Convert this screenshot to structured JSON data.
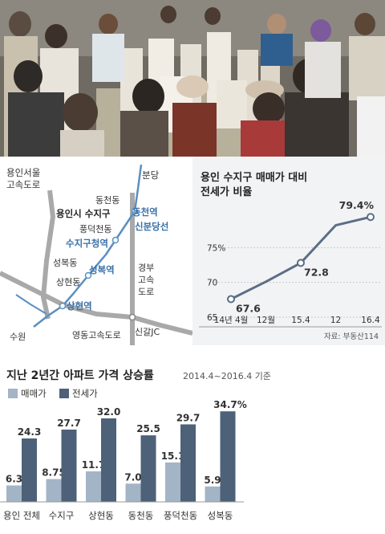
{
  "map": {
    "labels": {
      "expressway_yongin_seoul": "용인서울\n고속도로",
      "bundang": "분당",
      "dongcheon_dong": "동천동",
      "yongin_suji": "용인시 수지구",
      "dongcheon_station": "동천역",
      "pungdeokcheon_dong": "풍덕천동",
      "sinbundang_line": "신분당선",
      "suji_gu_office_station": "수지구청역",
      "seongbok_dong": "성복동",
      "seongbok_station": "성복역",
      "gyeongbu_expressway": "경부\n고속\n도로",
      "sanghyeon_dong": "상현동",
      "sanghyeon_station": "상현역",
      "suwon": "수원",
      "yeongdong_expressway": "영동고속도로",
      "singal_jc": "신갈JC"
    },
    "colors": {
      "road": "#a9a9a9",
      "rail": "#5b8fc1",
      "label": "#333333",
      "station": "#3a6fa8"
    }
  },
  "line_chart": {
    "title": "용인 수지구 매매가 대비\n전세가 비율",
    "source": "자료: 부동산114",
    "color": "#5b6e85"
  },
  "bar_chart": {
    "title": "지난 2년간 아파트 가격 상승률",
    "subtitle": "2014.4~2016.4 기준",
    "series_colors": {
      "sale": "#a3b4c6",
      "jeonse": "#4d6178"
    }
  },
  "chart_data": [
    {
      "type": "line",
      "title": "용인 수지구 매매가 대비 전세가 비율",
      "categories": [
        "14년 4월",
        "12월",
        "15.4",
        "12",
        "16.4"
      ],
      "x_tick_labels": [
        "14년 4월",
        "12월",
        "15.4",
        "12",
        "16.4"
      ],
      "values": [
        67.6,
        70.1,
        72.8,
        78.2,
        79.4
      ],
      "data_labels": [
        "67.6",
        "",
        "72.8",
        "",
        "79.4%"
      ],
      "y_ticks": [
        65,
        70,
        75
      ],
      "y_tick_labels": [
        "65",
        "70",
        "75%"
      ],
      "ylim": [
        65,
        80
      ],
      "source": "자료: 부동산114"
    },
    {
      "type": "bar",
      "title": "지난 2년간 아파트 가격 상승률",
      "subtitle": "2014.4~2016.4 기준",
      "categories": [
        "용인 전체",
        "수지구",
        "상현동",
        "동천동",
        "풍덕천동",
        "성복동"
      ],
      "series": [
        {
          "name": "매매가",
          "values": [
            6.3,
            8.75,
            11.7,
            7.0,
            15.1,
            5.9
          ],
          "labels": [
            "6.3",
            "8.75",
            "11.7",
            "7.0",
            "15.1",
            "5.9"
          ]
        },
        {
          "name": "전세가",
          "values": [
            24.3,
            27.7,
            32.0,
            25.5,
            29.7,
            34.7
          ],
          "labels": [
            "24.3",
            "27.7",
            "32.0",
            "25.5",
            "29.7",
            "34.7%"
          ]
        }
      ],
      "ylim": [
        0,
        36
      ],
      "legend": "top-left"
    }
  ]
}
